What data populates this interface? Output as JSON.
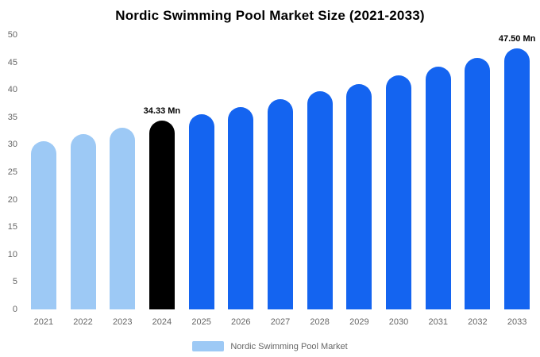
{
  "title": "Nordic Swimming Pool Market Size (2021-2033)",
  "legend": {
    "label": "Nordic Swimming Pool Market",
    "swatch_color": "#9dc9f5"
  },
  "colors": {
    "historical": "#9dc9f5",
    "highlight": "#000000",
    "forecast": "#1464f0"
  },
  "chart_data": {
    "type": "bar",
    "title": "Nordic Swimming Pool Market Size (2021-2033)",
    "xlabel": "",
    "ylabel": "",
    "ylim": [
      0,
      50
    ],
    "yticks": [
      0,
      5,
      10,
      15,
      20,
      25,
      30,
      35,
      40,
      45,
      50
    ],
    "grid": false,
    "legend_position": "bottom",
    "categories": [
      "2021",
      "2022",
      "2023",
      "2024",
      "2025",
      "2026",
      "2027",
      "2028",
      "2029",
      "2030",
      "2031",
      "2032",
      "2033"
    ],
    "values": [
      30.7,
      31.9,
      33.1,
      34.33,
      35.6,
      36.9,
      38.3,
      39.7,
      41.1,
      42.6,
      44.2,
      45.8,
      47.5
    ],
    "bar_colors": [
      "#9dc9f5",
      "#9dc9f5",
      "#9dc9f5",
      "#000000",
      "#1464f0",
      "#1464f0",
      "#1464f0",
      "#1464f0",
      "#1464f0",
      "#1464f0",
      "#1464f0",
      "#1464f0",
      "#1464f0"
    ],
    "annotations": [
      {
        "category": "2024",
        "text": "34.33 Mn"
      },
      {
        "category": "2033",
        "text": "47.50 Mn"
      }
    ]
  }
}
